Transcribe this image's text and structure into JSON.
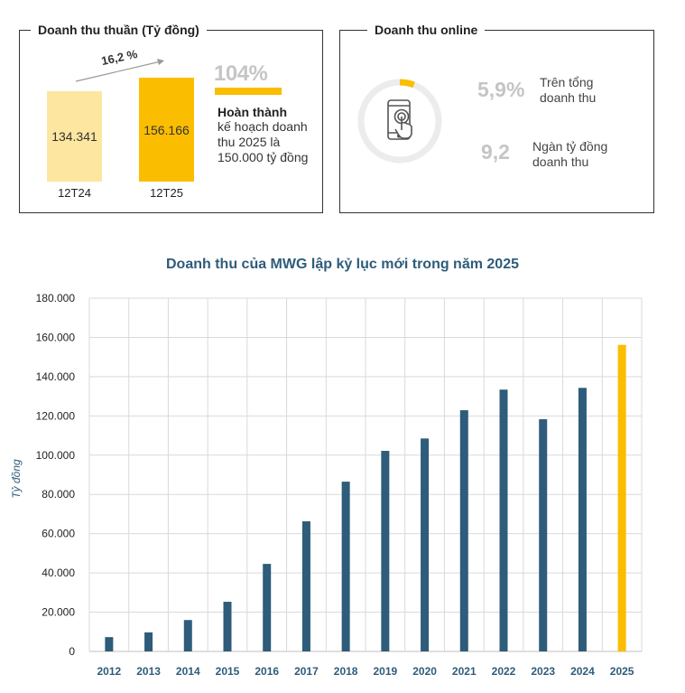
{
  "panel1": {
    "title": "Doanh thu thuần (Tỷ đồng)",
    "bars": [
      {
        "label": "12T24",
        "value": 134341,
        "display": "134.341",
        "color": "#fde6a0"
      },
      {
        "label": "12T25",
        "value": 156166,
        "display": "156.166",
        "color": "#fbbd00"
      }
    ],
    "growth": "16,2 %",
    "completion_pct": "104%",
    "completion_fraction": 1.04,
    "completion_title": "Hoàn thành",
    "completion_desc": "kế hoạch doanh thu 2025 là 150.000 tỷ đồng"
  },
  "panel2": {
    "title": "Doanh thu online",
    "ring_fraction": 0.059,
    "stat1_value": "5,9%",
    "stat1_desc": "Trên tổng doanh thu",
    "stat2_value": "9,2",
    "stat2_desc": "Ngàn tỷ đồng doanh thu",
    "icon": "phone-touch-icon"
  },
  "colors": {
    "accent": "#fbbd00",
    "accent_light": "#fde6a0",
    "bar": "#2e5c7a",
    "title": "#2e5c7a",
    "grid": "#d9d9d9"
  },
  "chart_data": {
    "type": "bar",
    "title": "Doanh thu của MWG lập kỷ lục mới trong năm 2025",
    "ylabel": "Tỷ đồng",
    "xlabel": "",
    "ylim": [
      0,
      180000
    ],
    "yticks": [
      "0",
      "20.000",
      "40.000",
      "60.000",
      "80.000",
      "100.000",
      "120.000",
      "140.000",
      "160.000",
      "180.000"
    ],
    "grid": true,
    "categories": [
      "2012",
      "2013",
      "2014",
      "2015",
      "2016",
      "2017",
      "2018",
      "2019",
      "2020",
      "2021",
      "2022",
      "2023",
      "2024",
      "2025"
    ],
    "values": [
      7300,
      9700,
      16000,
      25300,
      44600,
      66300,
      86500,
      102200,
      108500,
      122900,
      133400,
      118300,
      134300,
      156200
    ],
    "highlight_index": 13,
    "highlight_color": "#fbbd00"
  }
}
